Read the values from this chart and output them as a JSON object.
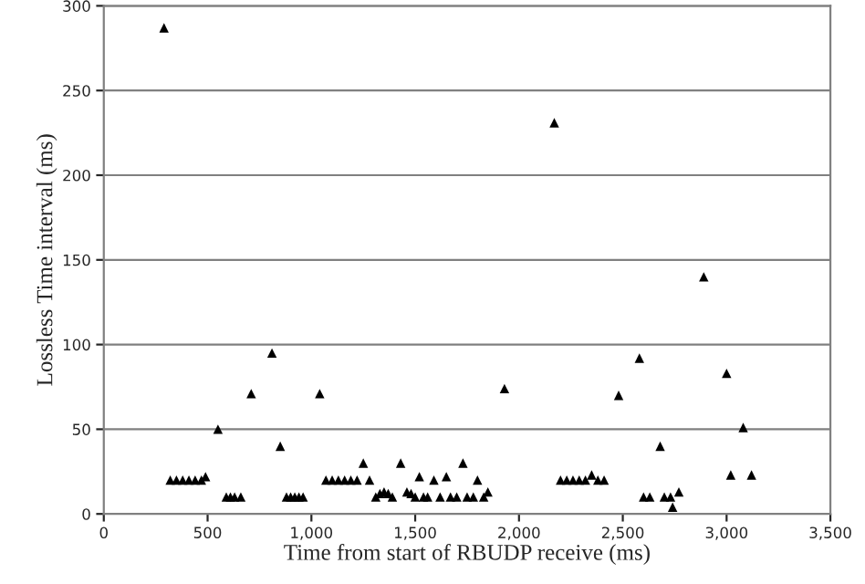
{
  "chart_data": {
    "type": "scatter",
    "xlabel": "Time from start of RBUDP receive (ms)",
    "ylabel": "Lossless Time interval (ms)",
    "xlim": [
      0,
      3500
    ],
    "ylim": [
      0,
      300
    ],
    "xticks": [
      {
        "value": 0,
        "label": "0"
      },
      {
        "value": 500,
        "label": "500"
      },
      {
        "value": 1000,
        "label": "1,000"
      },
      {
        "value": 1500,
        "label": "1,500"
      },
      {
        "value": 2000,
        "label": "2,000"
      },
      {
        "value": 2500,
        "label": "2,500"
      },
      {
        "value": 3000,
        "label": "3,000"
      },
      {
        "value": 3500,
        "label": "3,500"
      }
    ],
    "yticks": [
      0,
      50,
      100,
      150,
      200,
      250,
      300
    ],
    "grid": "y",
    "marker": "triangle",
    "series": [
      {
        "color": "#000000",
        "x": [
          290,
          320,
          350,
          380,
          410,
          440,
          470,
          490,
          550,
          590,
          610,
          630,
          660,
          710,
          810,
          850,
          880,
          900,
          920,
          940,
          960,
          1040,
          1070,
          1100,
          1130,
          1160,
          1190,
          1220,
          1250,
          1280,
          1310,
          1330,
          1350,
          1370,
          1390,
          1430,
          1460,
          1480,
          1500,
          1520,
          1540,
          1560,
          1590,
          1620,
          1650,
          1670,
          1700,
          1730,
          1750,
          1780,
          1800,
          1830,
          1850,
          1930,
          2170,
          2200,
          2230,
          2260,
          2290,
          2320,
          2350,
          2380,
          2410,
          2480,
          2580,
          2600,
          2630,
          2680,
          2700,
          2730,
          2740,
          2770,
          2890,
          3000,
          3020,
          3080,
          3120
        ],
        "values": [
          287,
          20,
          20,
          20,
          20,
          20,
          20,
          22,
          50,
          10,
          10,
          10,
          10,
          71,
          95,
          40,
          10,
          10,
          10,
          10,
          10,
          71,
          20,
          20,
          20,
          20,
          20,
          20,
          30,
          20,
          10,
          12,
          13,
          12,
          10,
          30,
          13,
          12,
          10,
          22,
          10,
          10,
          20,
          10,
          22,
          10,
          10,
          30,
          10,
          10,
          20,
          10,
          13,
          74,
          231,
          20,
          20,
          20,
          20,
          20,
          23,
          20,
          20,
          70,
          92,
          10,
          10,
          40,
          10,
          10,
          4,
          13,
          140,
          83,
          23,
          51,
          23
        ]
      }
    ]
  }
}
